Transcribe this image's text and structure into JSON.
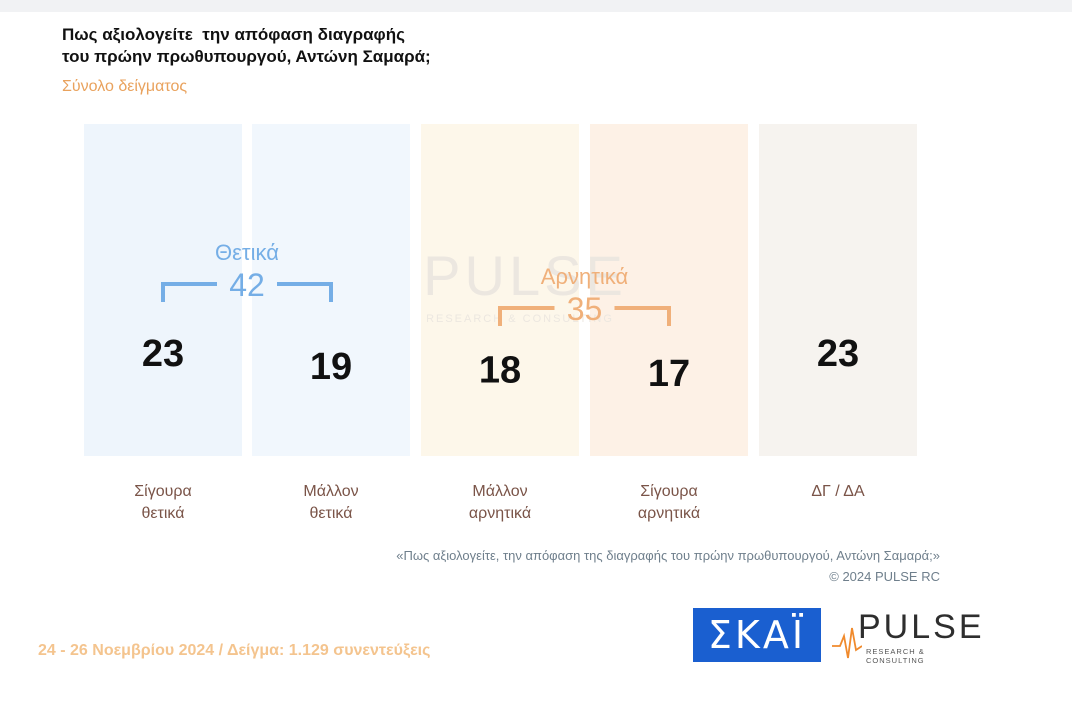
{
  "title_line1": "Πως αξιολογείτε  την απόφαση διαγραφής",
  "title_line2": "του πρώην πρωθυπουργού, Αντώνη Σαμαρά;",
  "subtitle": "Σύνολο δείγματος",
  "chart_data": {
    "type": "bar",
    "categories": [
      [
        "Σίγουρα",
        "θετικά"
      ],
      [
        "Μάλλον",
        "θετικά"
      ],
      [
        "Μάλλον",
        "αρνητικά"
      ],
      [
        "Σίγουρα",
        "αρνητικά"
      ],
      [
        "ΔΓ / ΔΑ"
      ]
    ],
    "values": [
      23,
      19,
      18,
      17,
      23
    ],
    "colors": [
      "#7fb7ec",
      "#b9d9f6",
      "#f6e6b9",
      "#f3c49a",
      "#d8ccbc"
    ],
    "ylim": [
      0,
      23
    ],
    "groups": [
      {
        "label": "Θετικά",
        "value": "42",
        "members": [
          0,
          1
        ],
        "color": "#75aee6"
      },
      {
        "label": "Αρνητικά",
        "value": "35",
        "members": [
          2,
          3
        ],
        "color": "#f0b07a"
      }
    ],
    "watermark": {
      "word": "PULSE",
      "sub": "RESEARCH & CONSULTING"
    }
  },
  "note": "«Πως αξιολογείτε, την απόφαση της διαγραφής του πρώην πρωθυπουργού, Αντώνη Σαμαρά;»",
  "copyright": "©  2024  PULSE RC",
  "footer": "24 - 26 Νοεμβρίου 2024  /  Δείγμα:  1.129 συνεντεύξεις",
  "logos": {
    "skai": "ΣΚΑΪ",
    "pulse": "PULSE",
    "pulse_sub": "RESEARCH & CONSULTING"
  }
}
